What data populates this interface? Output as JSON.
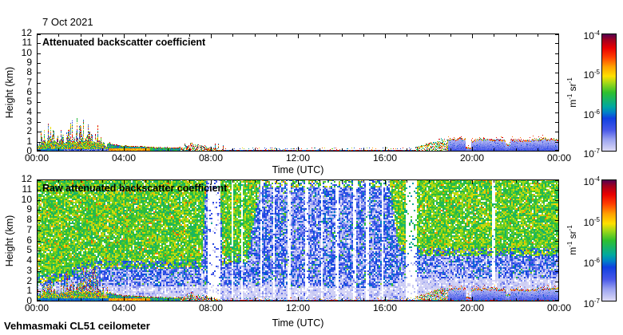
{
  "date_label": "7 Oct 2021",
  "footer_label": "Vehmasmaki CL51 ceilometer",
  "axis": {
    "xlabel": "Time (UTC)",
    "ylabel": "Height (km)",
    "x_range_hours": [
      0,
      24
    ],
    "y_range_km": [
      0,
      12
    ],
    "x_ticks": [
      {
        "label": "00:00",
        "hour": 0
      },
      {
        "label": "04:00",
        "hour": 4
      },
      {
        "label": "08:00",
        "hour": 8
      },
      {
        "label": "12:00",
        "hour": 12
      },
      {
        "label": "16:00",
        "hour": 16
      },
      {
        "label": "20:00",
        "hour": 20
      },
      {
        "label": "00:00",
        "hour": 24
      }
    ],
    "x_minor_step_hours": 1,
    "y_tick_labels": [
      0,
      1,
      2,
      3,
      4,
      5,
      6,
      7,
      8,
      9,
      10,
      11,
      12
    ]
  },
  "colorbar": {
    "scale": "log10",
    "range_m1sr1": [
      1e-07,
      0.0001
    ],
    "tick_labels": [
      {
        "base": "10",
        "exp": "-4"
      },
      {
        "base": "10",
        "exp": "-5"
      },
      {
        "base": "10",
        "exp": "-6"
      },
      {
        "base": "10",
        "exp": "-7"
      }
    ],
    "unit_parts": [
      {
        "base": "m",
        "exp": "-1"
      },
      {
        "base": "sr",
        "exp": "-1"
      }
    ],
    "stops": [
      [
        0.0,
        "#dedcf6"
      ],
      [
        0.1,
        "#9aa2f0"
      ],
      [
        0.18,
        "#4858e8"
      ],
      [
        0.28,
        "#1040e0"
      ],
      [
        0.33,
        "#0080c8"
      ],
      [
        0.38,
        "#00a8a0"
      ],
      [
        0.5,
        "#2fc02f"
      ],
      [
        0.58,
        "#a0d818"
      ],
      [
        0.64,
        "#ffe000"
      ],
      [
        0.72,
        "#ffa000"
      ],
      [
        0.8,
        "#ff4000"
      ],
      [
        0.88,
        "#e80000"
      ],
      [
        0.95,
        "#a00020"
      ],
      [
        1.0,
        "#500055"
      ]
    ]
  },
  "chart_data": [
    {
      "type": "heatmap",
      "title": "Attenuated backscatter coefficient",
      "xlabel": "Time (UTC)",
      "ylabel": "Height (km)",
      "x_range_hours": [
        0,
        24
      ],
      "y_range_km": [
        0,
        12
      ],
      "z_scale": "log10",
      "z_range": [
        1e-07,
        0.0001
      ],
      "z_unit": "m-1 sr-1",
      "background": "white (below colour scale)",
      "boundary_layer_top_km": {
        "t_start_hours": 0,
        "t_step_hours": 0.5,
        "values": [
          0.9,
          2.3,
          1.6,
          2.9,
          2.5,
          3.1,
          1.3,
          0.75,
          0.6,
          0.55,
          0.5,
          0.45,
          0.42,
          0.4,
          0.9,
          0.75,
          0.5,
          0.22,
          0.15,
          0.12,
          0.12,
          0.1,
          0.1,
          0.1,
          0.1,
          0.1,
          0.1,
          0.1,
          0.1,
          0.1,
          0.1,
          0.12,
          0.15,
          0.2,
          0.3,
          0.55,
          0.85,
          1.3,
          1.25,
          1.4,
          1.15,
          1.3,
          1.3,
          1.2,
          1.25,
          1.15,
          1.3,
          1.35,
          1.3
        ]
      },
      "events": [
        "00:00-03:15 dense multicolour low-level echoes with spikes to ~3 km",
        "03:15-06:30 shallow strong (yellow/orange) layer below ~0.6 km with red top edge",
        "06:30-08:30 intermittent shallow plumes to ~1 km",
        "08:30-17:30 only a very thin dark red/blue surface line (~0.1 km)",
        "17:30-19:00 speckled plumes growing to ~1 km",
        "19:00-24:00 pale blue layer up to ~1.4 km capped by red/orange speckled top, brief gap near 19:50"
      ]
    },
    {
      "type": "heatmap",
      "title": "Raw attenuated backscatter coefficient",
      "xlabel": "Time (UTC)",
      "ylabel": "Height (km)",
      "x_range_hours": [
        0,
        24
      ],
      "y_range_km": [
        0,
        12
      ],
      "z_scale": "log10",
      "z_range": [
        1e-07,
        0.0001
      ],
      "z_unit": "m-1 sr-1",
      "background": "instrument noise fills the whole panel",
      "noise": {
        "description": "green/yellow speckle noise aloft, blue speckle at mid levels, pale band near 1-2 km; clear (white) columns 07:50-08:25 and narrow streaks through midday",
        "green_floor_km": [
          [
            0,
            1.7
          ],
          [
            1.3,
            2.0
          ],
          [
            2.2,
            3.2
          ],
          [
            7.6,
            3.2
          ],
          [
            7.8,
            12.5
          ],
          [
            8.4,
            12.5
          ],
          [
            8.55,
            3.6
          ],
          [
            9.7,
            3.9
          ],
          [
            10.25,
            11.15
          ],
          [
            16.2,
            11.15
          ],
          [
            16.65,
            5.0
          ],
          [
            17.1,
            4.4
          ],
          [
            24,
            4.4
          ]
        ],
        "white_band_top_km": [
          [
            0,
            1.55
          ],
          [
            8,
            1.55
          ],
          [
            10,
            1.45
          ],
          [
            16,
            1.25
          ],
          [
            17.2,
            2.35
          ],
          [
            24,
            2.2
          ]
        ],
        "clear_streaks": [
          {
            "t": 8.15,
            "w": 0.55
          },
          {
            "t": 9.0,
            "w": 0.12
          },
          {
            "t": 9.45,
            "w": 0.1
          },
          {
            "t": 10.3,
            "w": 0.12
          },
          {
            "t": 10.9,
            "w": 0.1
          },
          {
            "t": 11.6,
            "w": 0.14
          },
          {
            "t": 12.4,
            "w": 0.1
          },
          {
            "t": 13.1,
            "w": 0.12
          },
          {
            "t": 13.8,
            "w": 0.1
          },
          {
            "t": 14.6,
            "w": 0.12
          },
          {
            "t": 15.2,
            "w": 0.1
          },
          {
            "t": 15.9,
            "w": 0.12
          },
          {
            "t": 17.2,
            "w": 0.5
          },
          {
            "t": 21.0,
            "w": 0.1
          }
        ]
      },
      "boundary_layer_top_km": {
        "t_start_hours": 0,
        "t_step_hours": 0.5,
        "values": [
          0.9,
          2.3,
          1.6,
          2.9,
          2.5,
          3.1,
          1.3,
          0.75,
          0.6,
          0.55,
          0.5,
          0.45,
          0.42,
          0.4,
          0.9,
          0.75,
          0.5,
          0.22,
          0.15,
          0.12,
          0.12,
          0.1,
          0.1,
          0.1,
          0.1,
          0.1,
          0.1,
          0.1,
          0.1,
          0.1,
          0.1,
          0.12,
          0.15,
          0.2,
          0.3,
          0.55,
          0.85,
          1.3,
          1.25,
          1.4,
          1.15,
          1.3,
          1.3,
          1.2,
          1.25,
          1.15,
          1.3,
          1.35,
          1.3
        ]
      }
    }
  ],
  "render_seed": 7
}
